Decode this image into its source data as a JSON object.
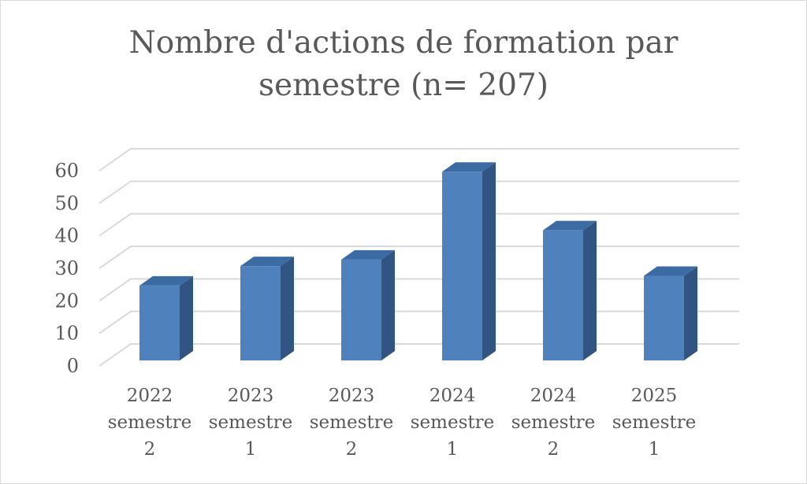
{
  "chart_data": {
    "type": "bar",
    "style": "3d-column",
    "title_lines": [
      "Nombre d'actions de formation par",
      "semestre (n= 207)"
    ],
    "categories": [
      [
        "2022",
        "semestre",
        "2"
      ],
      [
        "2023",
        "semestre",
        "1"
      ],
      [
        "2023",
        "semestre",
        "2"
      ],
      [
        "2024",
        "semestre",
        "1"
      ],
      [
        "2024",
        "semestre",
        "2"
      ],
      [
        "2025",
        "semestre",
        "1"
      ]
    ],
    "values": [
      23,
      29,
      31,
      58,
      40,
      26
    ],
    "ylim": [
      0,
      60
    ],
    "yticks": [
      "0",
      "10",
      "20",
      "30",
      "40",
      "50",
      "60"
    ],
    "grid": true,
    "legend": "none",
    "colors": {
      "front": "#4f81bd",
      "side": "#2f5580",
      "top": "#3c6aa3",
      "grid": "#d9d9d9",
      "text": "#595959"
    }
  }
}
